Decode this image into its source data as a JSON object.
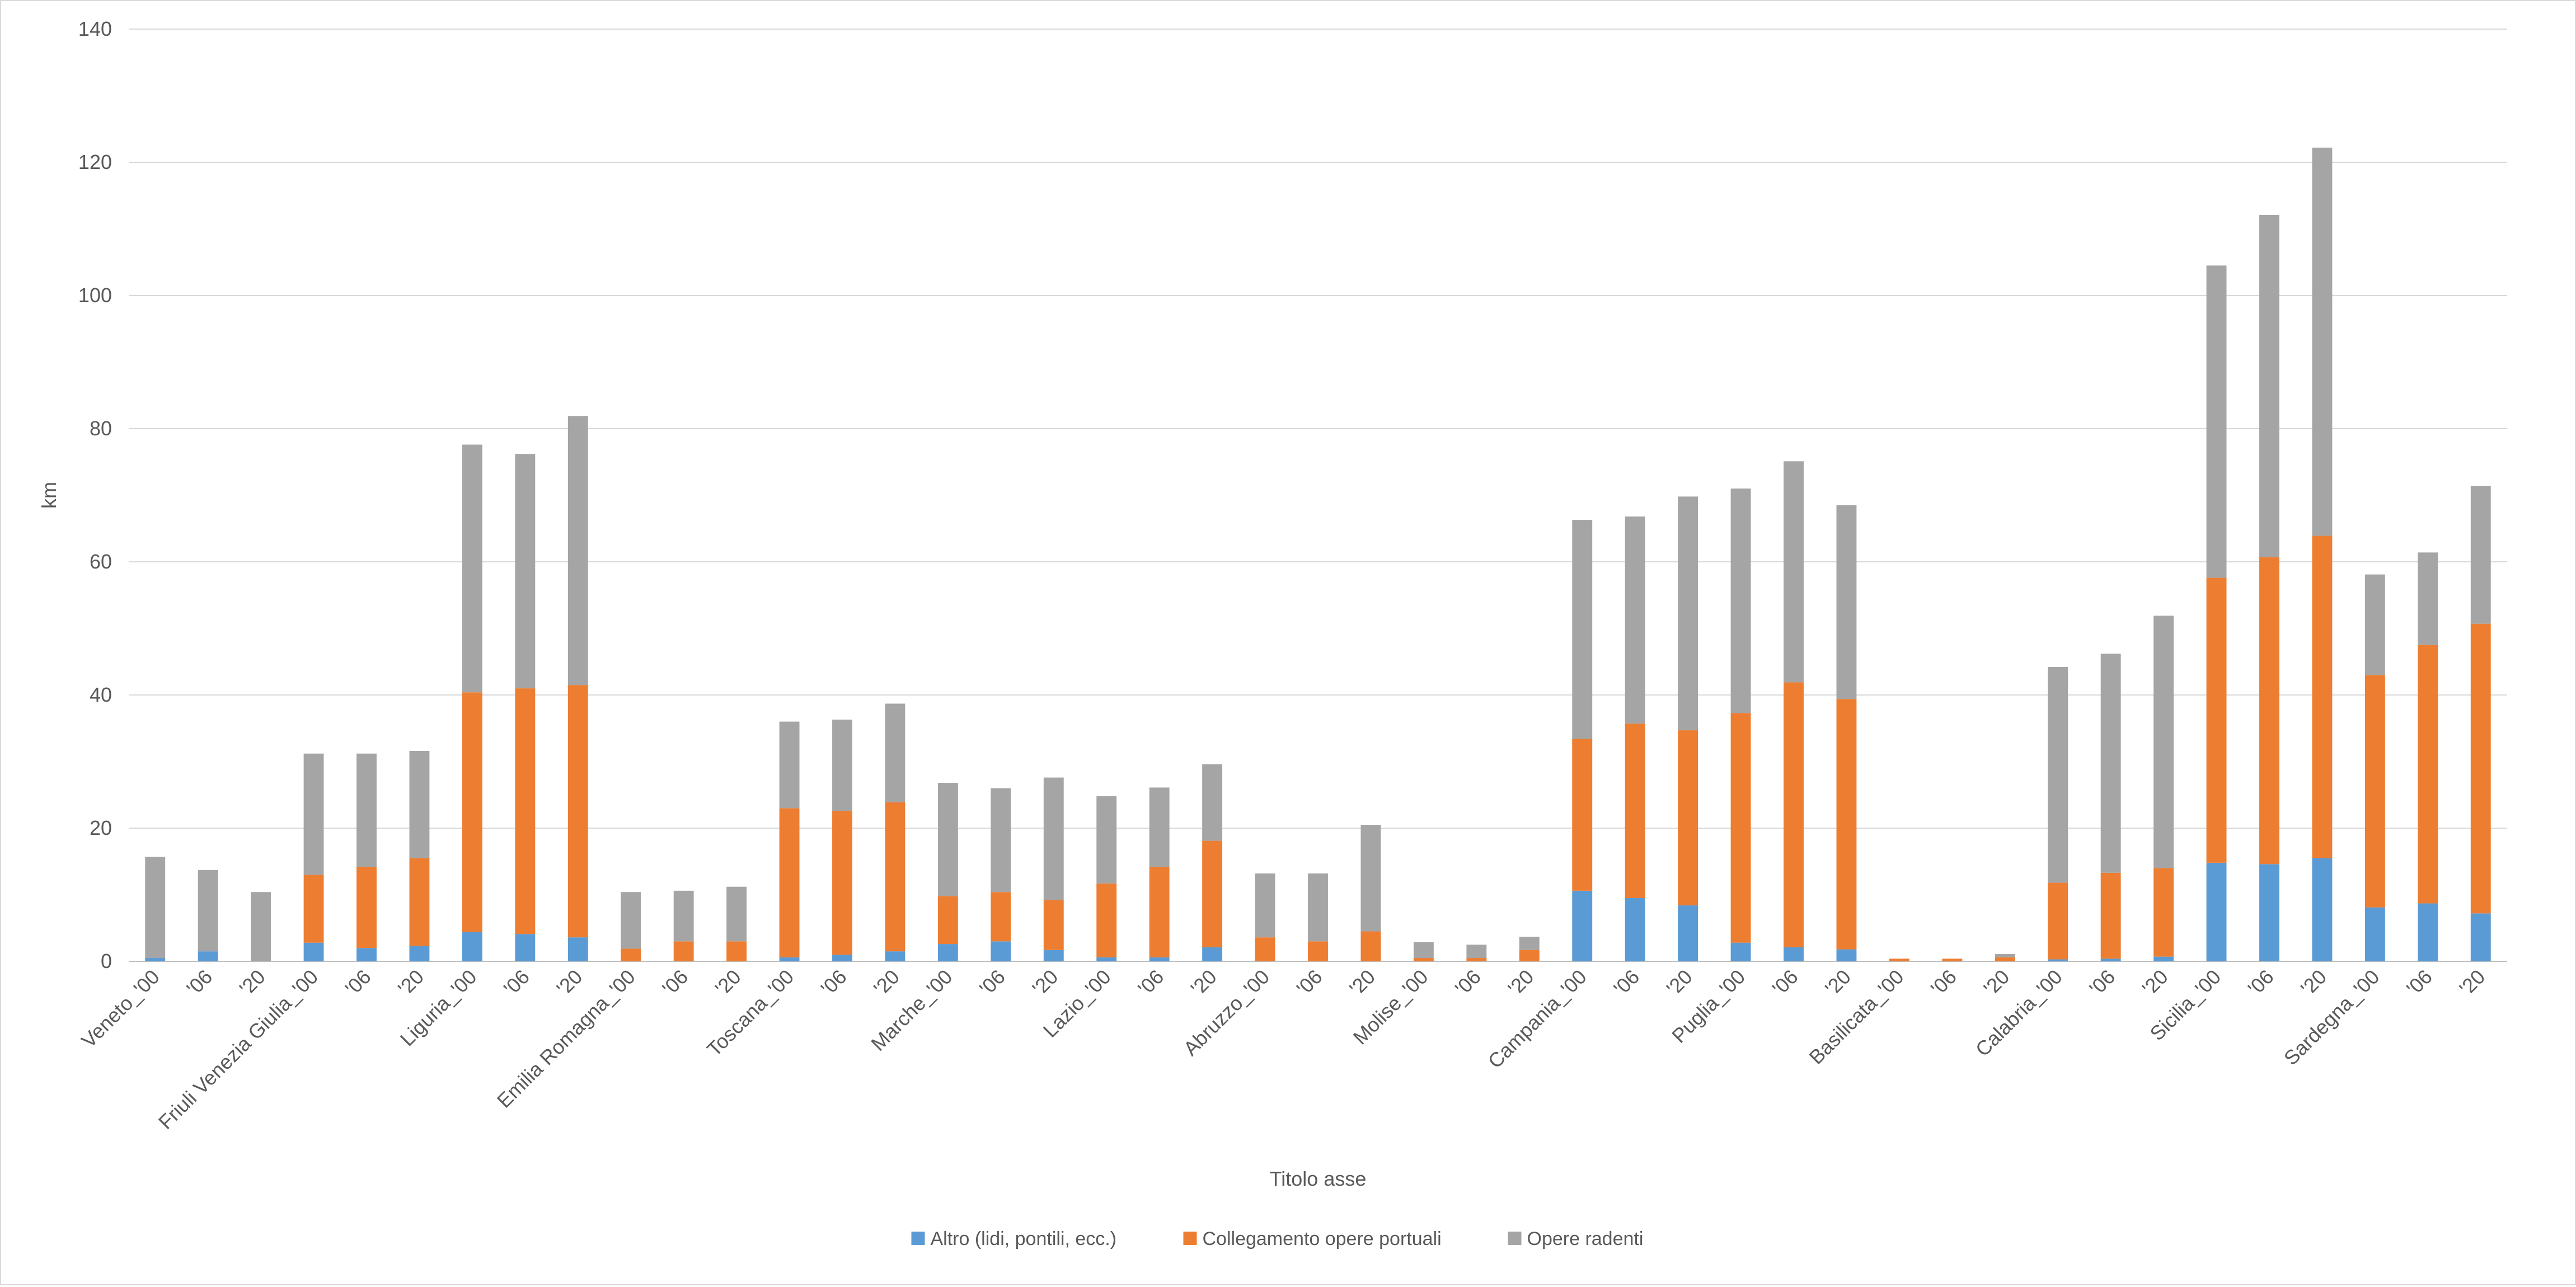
{
  "chart_data": {
    "type": "bar",
    "stacked": true,
    "title": "",
    "xlabel": "Titolo asse",
    "ylabel": "km",
    "ylim": [
      0,
      140
    ],
    "yticks": [
      0,
      20,
      40,
      60,
      80,
      100,
      120,
      140
    ],
    "grid": true,
    "legend_position": "bottom",
    "categories": [
      "Veneto_'00",
      "'06",
      "'20",
      "Friuli Venezia Giulia_'00",
      "'06",
      "'20",
      "Liguria_'00",
      "'06",
      "'20",
      "Emilia Romagna_'00",
      "'06",
      "'20",
      "Toscana_'00",
      "'06",
      "'20",
      "Marche_'00",
      "'06",
      "'20",
      "Lazio_'00",
      "'06",
      "'20",
      "Abruzzo_'00",
      "'06",
      "'20",
      "Molise_'00",
      "'06",
      "'20",
      "Campania_'00",
      "'06",
      "'20",
      "Puglia_'00",
      "'06",
      "'20",
      "Basilicata_'00",
      "'06",
      "'20",
      "Calabria_'00",
      "'06",
      "'20",
      "Sicilia_'00",
      "'06",
      "'20",
      "Sardegna_'00",
      "'06",
      "'20"
    ],
    "series": [
      {
        "name": "Altro (lidi, pontili, ecc.)",
        "color": "#5b9bd5",
        "values": [
          0.5,
          1.5,
          0,
          2.8,
          2,
          2.3,
          4.4,
          4.1,
          3.6,
          0,
          0,
          0,
          0.6,
          1,
          1.5,
          2.6,
          3,
          1.7,
          0.6,
          0.6,
          2.1,
          0,
          0,
          0,
          0,
          0,
          0,
          10.6,
          9.5,
          8.4,
          2.8,
          2.1,
          1.8,
          0,
          0,
          0,
          0.3,
          0.4,
          0.7,
          14.8,
          14.6,
          15.5,
          8.1,
          8.7,
          7.2
        ]
      },
      {
        "name": "Collegamento opere portuali",
        "color": "#ed7d31",
        "values": [
          0,
          0,
          0,
          10.2,
          12.2,
          13.2,
          36,
          36.9,
          37.9,
          1.9,
          3,
          3,
          22.4,
          21.6,
          22.4,
          7.2,
          7.4,
          7.5,
          11.1,
          13.6,
          16,
          3.6,
          3,
          4.5,
          0.5,
          0.5,
          1.7,
          22.8,
          26.2,
          26.3,
          34.5,
          39.8,
          37.6,
          0.4,
          0.4,
          0.6,
          11.5,
          12.9,
          13.3,
          42.8,
          46.1,
          48.4,
          34.9,
          38.8,
          43.5
        ]
      },
      {
        "name": "Opere radenti",
        "color": "#a5a5a5",
        "values": [
          15.2,
          12.2,
          10.4,
          18.2,
          17,
          16.1,
          37.2,
          35.2,
          40.4,
          8.5,
          7.6,
          8.2,
          13,
          13.7,
          14.8,
          17,
          15.6,
          18.4,
          13.1,
          11.9,
          11.5,
          9.6,
          10.2,
          16,
          2.4,
          2,
          2,
          32.9,
          31.1,
          35.1,
          33.7,
          33.2,
          29.1,
          0,
          0,
          0.5,
          32.4,
          32.9,
          37.9,
          46.9,
          51.4,
          58.3,
          15.1,
          13.9,
          20.7
        ]
      }
    ]
  }
}
